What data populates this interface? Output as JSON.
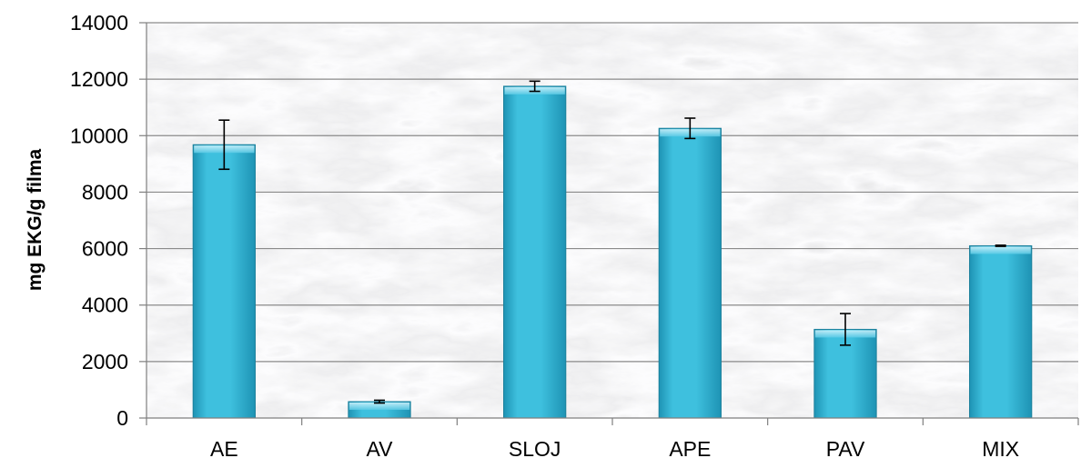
{
  "chart_data": {
    "type": "bar",
    "title": "",
    "xlabel": "",
    "ylabel": "mg EKG/g filma",
    "categories": [
      "AE",
      "AV",
      "SLOJ",
      "APE",
      "PAV",
      "MIX"
    ],
    "series": [
      {
        "values": [
          9680,
          580,
          11750,
          10260,
          3140,
          6100
        ],
        "error": [
          870,
          50,
          180,
          360,
          560,
          20
        ]
      }
    ],
    "ylim": [
      0,
      14000
    ],
    "yticks": [
      0,
      2000,
      4000,
      6000,
      8000,
      10000,
      12000,
      14000
    ],
    "grid": true,
    "legend": "none",
    "colors": {
      "bar_fill": "#3ec0de",
      "bar_dark": "#1e93b4",
      "bar_light": "#9ae3f5",
      "bar_stroke": "#1a7f9b",
      "grid": "#8a8a8a",
      "axis": "#7f7f7f",
      "error_bar": "#000000",
      "plot_background": "#d9d9d9"
    }
  }
}
